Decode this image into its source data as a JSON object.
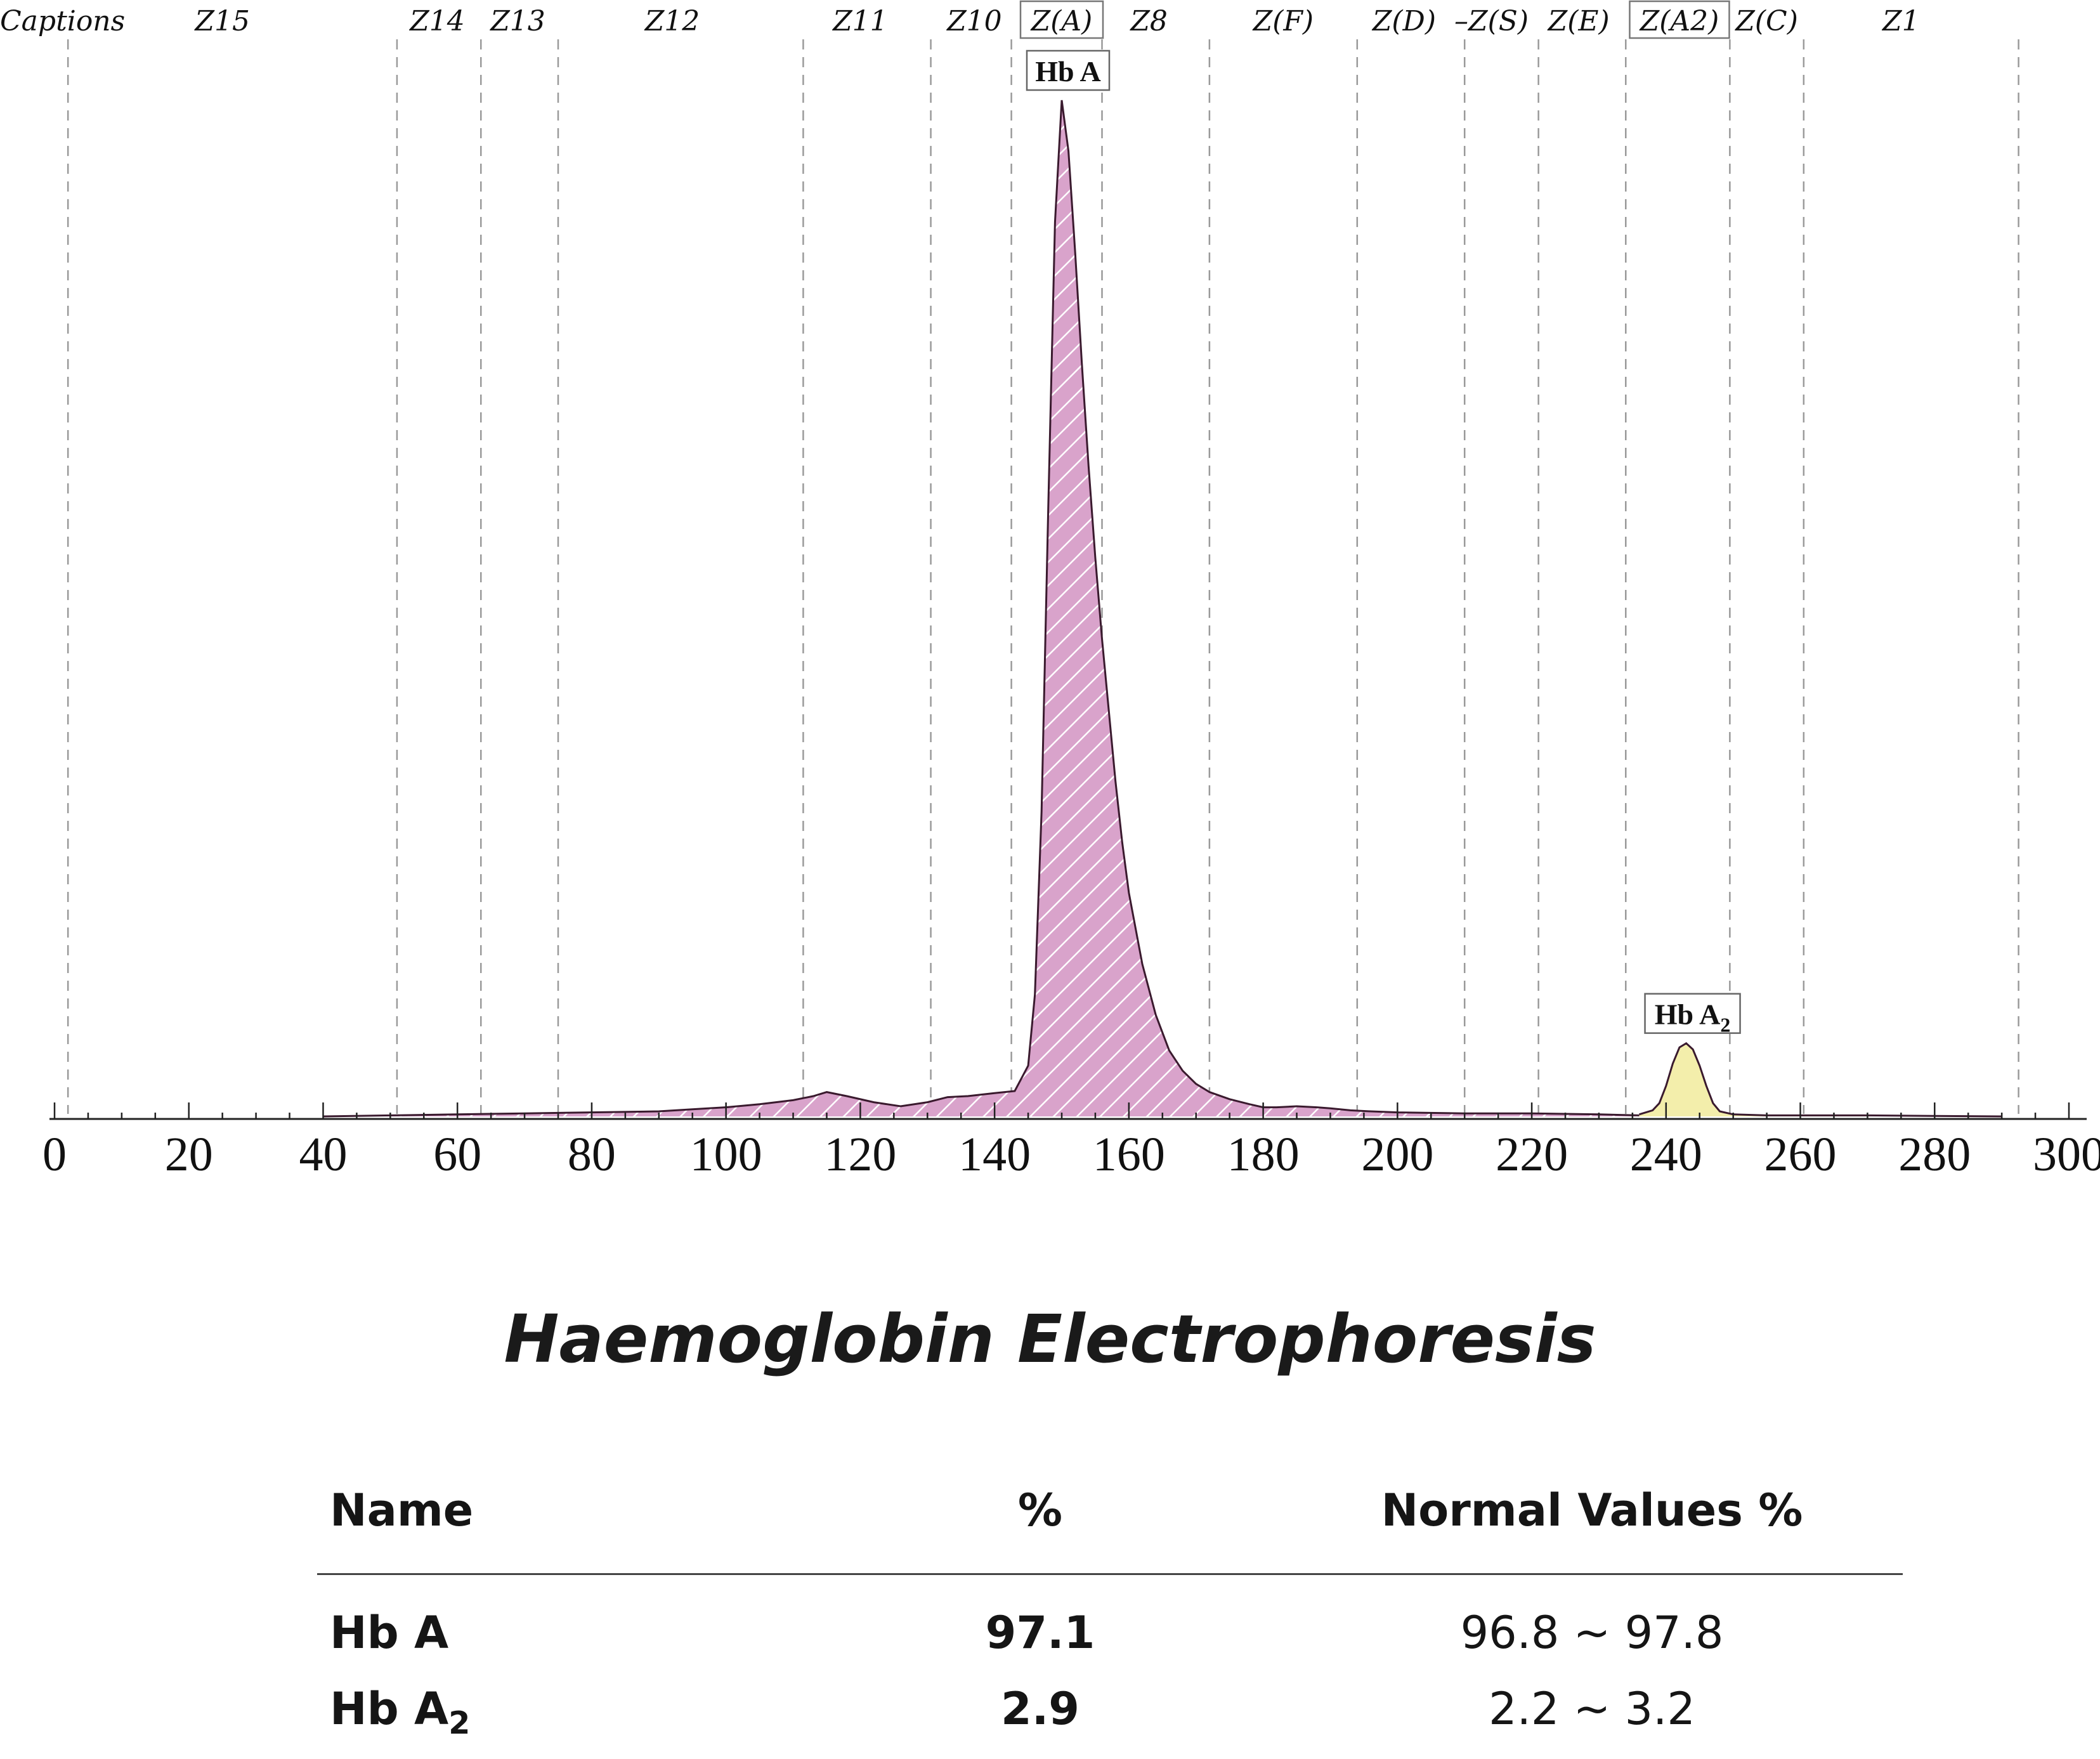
{
  "chart_data": {
    "type": "area",
    "title": "",
    "xlabel": "",
    "ylabel": "",
    "xlim": [
      0,
      300
    ],
    "xticks": [
      0,
      20,
      40,
      60,
      80,
      100,
      120,
      140,
      160,
      180,
      200,
      220,
      240,
      260,
      280,
      300
    ],
    "caption_header": "Captions",
    "zones": [
      {
        "label": "Z15",
        "center": 25,
        "boxed": false
      },
      {
        "label": "Z14",
        "center": 57,
        "boxed": false
      },
      {
        "label": "Z13",
        "center": 69,
        "boxed": false
      },
      {
        "label": "Z12",
        "center": 92,
        "boxed": false
      },
      {
        "label": "Z11",
        "center": 120,
        "boxed": false
      },
      {
        "label": "Z10",
        "center": 137,
        "boxed": false
      },
      {
        "label": "Z(A)",
        "center": 150,
        "boxed": true
      },
      {
        "label": "Z8",
        "center": 163,
        "boxed": false
      },
      {
        "label": "Z(F)",
        "center": 183,
        "boxed": false
      },
      {
        "label": "Z(D)",
        "center": 201,
        "boxed": false
      },
      {
        "label": "–Z(S)",
        "center": 214,
        "boxed": false
      },
      {
        "label": "Z(E)",
        "center": 227,
        "boxed": false
      },
      {
        "label": "Z(A2)",
        "center": 242,
        "boxed": true
      },
      {
        "label": "Z(C)",
        "center": 255,
        "boxed": false
      },
      {
        "label": "Z1",
        "center": 275,
        "boxed": false
      }
    ],
    "zone_boundaries": [
      2,
      51,
      63.5,
      75,
      111.5,
      130.5,
      142.5,
      156,
      172,
      194,
      210,
      221,
      234,
      249.5,
      260.5,
      292.5
    ],
    "series": [
      {
        "color": "#d9a3cb",
        "x": [
          40,
          50,
          60,
          70,
          80,
          90,
          95,
          100,
          105,
          110,
          113,
          115,
          118,
          122,
          126,
          130,
          133,
          136,
          140,
          143,
          145,
          146,
          147,
          148,
          149,
          150,
          151,
          152,
          153,
          154,
          155,
          156,
          157,
          158,
          159,
          160,
          162,
          164,
          166,
          168,
          170,
          172,
          175,
          178,
          180,
          182,
          185,
          188,
          190,
          193,
          196,
          200,
          210,
          220,
          230,
          236
        ],
        "y": [
          0,
          0.1,
          0.2,
          0.3,
          0.4,
          0.5,
          0.7,
          0.9,
          1.2,
          1.6,
          2.0,
          2.4,
          2.0,
          1.4,
          1.0,
          1.4,
          1.9,
          2.0,
          2.3,
          2.5,
          5,
          12,
          30,
          60,
          88,
          100,
          95,
          85,
          74,
          64,
          55,
          47,
          40,
          33,
          27,
          22,
          15,
          10,
          6.5,
          4.5,
          3.2,
          2.4,
          1.7,
          1.2,
          0.9,
          0.9,
          1.0,
          0.9,
          0.8,
          0.6,
          0.5,
          0.4,
          0.3,
          0.3,
          0.2,
          0.1
        ]
      },
      {
        "color": "#f3eeab",
        "x": [
          236,
          238,
          239,
          240,
          241,
          242,
          243,
          244,
          245,
          246,
          247,
          248,
          250,
          255,
          260,
          270,
          280,
          290
        ],
        "y": [
          0.2,
          0.6,
          1.3,
          3.0,
          5.2,
          6.8,
          7.2,
          6.6,
          5.0,
          3.0,
          1.3,
          0.5,
          0.2,
          0.1,
          0.1,
          0.1,
          0.05,
          0
        ]
      }
    ],
    "peaks": [
      {
        "label_main": "Hb A",
        "label_sub": "",
        "x": 150,
        "y": 100
      },
      {
        "label_main": "Hb A",
        "label_sub": "2",
        "x": 243,
        "y": 7.2
      }
    ]
  },
  "report": {
    "title": "Haemoglobin Electrophoresis",
    "headers": {
      "name": "Name",
      "percent": "%",
      "normal": "Normal Values %"
    },
    "rows": [
      {
        "name_main": "Hb A",
        "name_sub": "",
        "percent": "97.1",
        "normal": "96.8 ~ 97.8"
      },
      {
        "name_main": "Hb A",
        "name_sub": "2",
        "percent": "2.9",
        "normal": "2.2 ~ 3.2"
      }
    ]
  }
}
